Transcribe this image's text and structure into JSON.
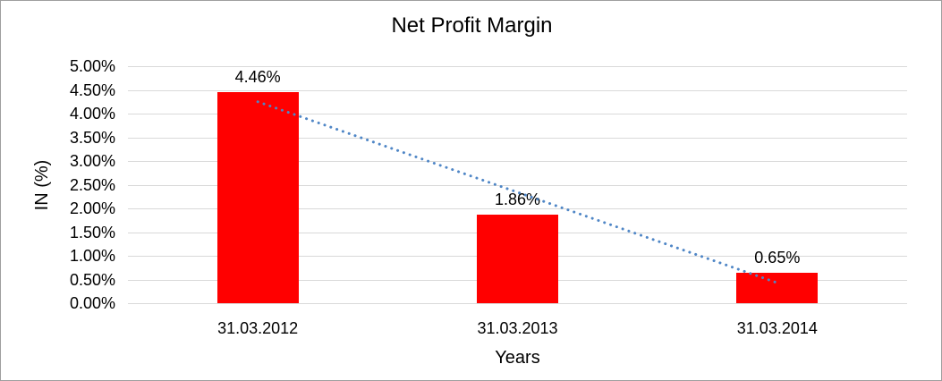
{
  "window": {
    "background": "#ffffff",
    "border_color": "#9e9e9e"
  },
  "chart_data": {
    "type": "bar",
    "title": "Net Profit Margin",
    "xlabel": "Years",
    "ylabel": "IN (%)",
    "categories": [
      "31.03.2012",
      "31.03.2013",
      "31.03.2014"
    ],
    "series": [
      {
        "name": "Net Profit Margin",
        "values": [
          4.46,
          1.86,
          0.65
        ]
      }
    ],
    "data_labels": [
      "4.46%",
      "1.86%",
      "0.65%"
    ],
    "y_ticks": [
      "5.00%",
      "4.50%",
      "4.00%",
      "3.50%",
      "3.00%",
      "2.50%",
      "2.00%",
      "1.50%",
      "1.00%",
      "0.50%",
      "0.00%"
    ],
    "ylim": [
      0,
      5
    ],
    "grid": true,
    "legend": "none",
    "colors": {
      "bar": "#ff0000",
      "gridline": "#d9d9d9",
      "trendline": "#4f86c6",
      "text": "#000000"
    },
    "trendline": {
      "shape": "linear",
      "style": "dotted",
      "start_category_index": 0,
      "end_category_index": 2,
      "start_pct": 4.25,
      "end_pct": 0.43
    }
  }
}
